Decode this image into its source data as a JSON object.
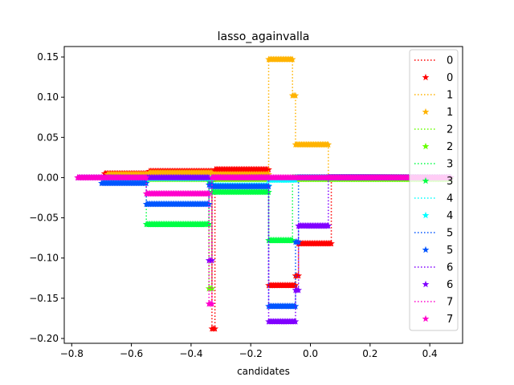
{
  "chart_data": {
    "type": "line",
    "title": "lasso_againvalla",
    "xlabel": "candidates",
    "ylabel": "",
    "xlim": [
      -0.825,
      0.51
    ],
    "ylim": [
      -0.206,
      0.163
    ],
    "x_ticks": [
      -0.8,
      -0.6,
      -0.4,
      -0.2,
      0.0,
      0.2,
      0.4
    ],
    "x_tick_labels": [
      "−0.8",
      "−0.6",
      "−0.4",
      "−0.2",
      "0.0",
      "0.2",
      "0.4"
    ],
    "y_ticks": [
      0.15,
      0.1,
      0.05,
      0.0,
      -0.05,
      -0.1,
      -0.15,
      -0.2
    ],
    "y_tick_labels": [
      "0.15",
      "0.10",
      "0.05",
      "0.00",
      "−0.05",
      "−0.10",
      "−0.15",
      "−0.20"
    ],
    "grid": false,
    "legend_position": "top-right",
    "legend": [
      {
        "label": "0",
        "kind": "line",
        "series": 0
      },
      {
        "label": "0",
        "kind": "marker",
        "series": 0
      },
      {
        "label": "1",
        "kind": "line",
        "series": 1
      },
      {
        "label": "1",
        "kind": "marker",
        "series": 1
      },
      {
        "label": "2",
        "kind": "line",
        "series": 2
      },
      {
        "label": "2",
        "kind": "marker",
        "series": 2
      },
      {
        "label": "3",
        "kind": "line",
        "series": 3
      },
      {
        "label": "3",
        "kind": "marker",
        "series": 3
      },
      {
        "label": "4",
        "kind": "line",
        "series": 4
      },
      {
        "label": "4",
        "kind": "marker",
        "series": 4
      },
      {
        "label": "5",
        "kind": "line",
        "series": 5
      },
      {
        "label": "5",
        "kind": "marker",
        "series": 5
      },
      {
        "label": "6",
        "kind": "line",
        "series": 6
      },
      {
        "label": "6",
        "kind": "marker",
        "series": 6
      },
      {
        "label": "7",
        "kind": "line",
        "series": 7
      },
      {
        "label": "7",
        "kind": "marker",
        "series": 7
      }
    ],
    "series": [
      {
        "name": "0",
        "color": "#ff0000",
        "segments": [
          [
            -0.69,
            0.005,
            -0.54,
            0.005
          ],
          [
            -0.54,
            0.008,
            -0.33,
            0.008
          ],
          [
            -0.33,
            -0.188,
            -0.32,
            -0.188
          ],
          [
            -0.32,
            0.01,
            -0.14,
            0.01
          ],
          [
            -0.14,
            -0.134,
            -0.05,
            -0.134
          ],
          [
            -0.05,
            -0.122,
            -0.04,
            -0.122
          ],
          [
            -0.04,
            -0.082,
            0.07,
            -0.082
          ],
          [
            0.07,
            0.0,
            0.47,
            0.0
          ]
        ]
      },
      {
        "name": "1",
        "color": "#ffb300",
        "segments": [
          [
            -0.68,
            0.004,
            -0.54,
            0.004
          ],
          [
            -0.54,
            0.006,
            -0.33,
            0.006
          ],
          [
            -0.33,
            0.004,
            -0.14,
            0.004
          ],
          [
            -0.14,
            0.147,
            -0.06,
            0.147
          ],
          [
            -0.06,
            0.102,
            -0.05,
            0.102
          ],
          [
            -0.05,
            0.041,
            0.06,
            0.041
          ],
          [
            0.06,
            0.0,
            0.47,
            0.0
          ]
        ]
      },
      {
        "name": "2",
        "color": "#66ff00",
        "segments": [
          [
            -0.68,
            0.0,
            -0.55,
            0.0
          ],
          [
            -0.55,
            -0.002,
            -0.34,
            -0.002
          ],
          [
            -0.34,
            -0.138,
            -0.33,
            -0.138
          ],
          [
            -0.33,
            -0.002,
            0.47,
            -0.002
          ]
        ]
      },
      {
        "name": "3",
        "color": "#00ff44",
        "segments": [
          [
            -0.69,
            -0.003,
            -0.55,
            -0.003
          ],
          [
            -0.55,
            -0.058,
            -0.34,
            -0.058
          ],
          [
            -0.34,
            -0.005,
            -0.33,
            -0.005
          ],
          [
            -0.33,
            -0.018,
            -0.14,
            -0.018
          ],
          [
            -0.14,
            -0.078,
            -0.06,
            -0.078
          ],
          [
            -0.06,
            0.0,
            0.47,
            0.0
          ]
        ]
      },
      {
        "name": "4",
        "color": "#00ffff",
        "segments": [
          [
            -0.69,
            -0.002,
            -0.55,
            -0.002
          ],
          [
            -0.55,
            -0.001,
            -0.33,
            -0.001
          ],
          [
            -0.33,
            -0.01,
            -0.14,
            -0.01
          ],
          [
            -0.14,
            -0.003,
            -0.05,
            -0.003
          ],
          [
            -0.05,
            0.0,
            0.47,
            0.0
          ]
        ]
      },
      {
        "name": "5",
        "color": "#0055ff",
        "segments": [
          [
            -0.7,
            -0.007,
            -0.55,
            -0.007
          ],
          [
            -0.55,
            -0.033,
            -0.34,
            -0.033
          ],
          [
            -0.34,
            -0.009,
            -0.33,
            -0.009
          ],
          [
            -0.33,
            -0.011,
            -0.14,
            -0.011
          ],
          [
            -0.14,
            -0.16,
            -0.05,
            -0.16
          ],
          [
            -0.05,
            -0.08,
            -0.04,
            -0.08
          ],
          [
            -0.04,
            0.0,
            0.47,
            0.0
          ]
        ]
      },
      {
        "name": "6",
        "color": "#8000ff",
        "segments": [
          [
            -0.78,
            0.0,
            -0.55,
            0.0
          ],
          [
            -0.55,
            0.0,
            -0.34,
            0.0
          ],
          [
            -0.34,
            -0.103,
            -0.33,
            -0.103
          ],
          [
            -0.33,
            0.0,
            -0.14,
            0.0
          ],
          [
            -0.14,
            -0.179,
            -0.05,
            -0.179
          ],
          [
            -0.05,
            -0.14,
            -0.04,
            -0.14
          ],
          [
            -0.04,
            -0.06,
            0.06,
            -0.06
          ],
          [
            0.06,
            0.0,
            0.47,
            0.0
          ]
        ]
      },
      {
        "name": "7",
        "color": "#ff00cc",
        "segments": [
          [
            -0.78,
            0.0,
            -0.55,
            0.0
          ],
          [
            -0.55,
            -0.02,
            -0.34,
            -0.02
          ],
          [
            -0.34,
            -0.157,
            -0.33,
            -0.157
          ],
          [
            -0.33,
            0.0,
            0.47,
            0.0
          ]
        ]
      }
    ]
  }
}
